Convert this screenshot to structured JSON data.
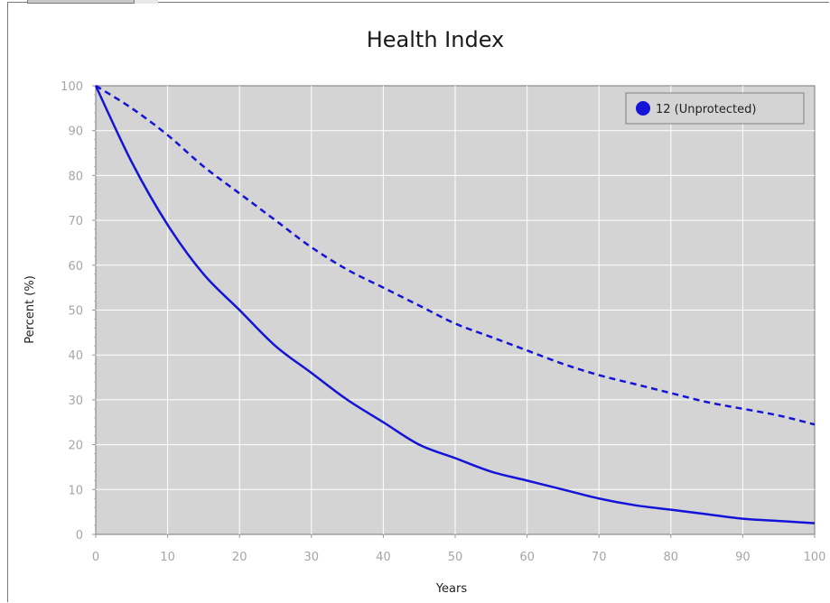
{
  "chart_data": {
    "type": "line",
    "title": "Health Index",
    "xlabel": "Years",
    "ylabel": "Percent (%)",
    "xlim": [
      0,
      100
    ],
    "ylim": [
      0,
      100
    ],
    "x_ticks": [
      "0",
      "10",
      "20",
      "30",
      "40",
      "50",
      "60",
      "70",
      "80",
      "90",
      "100"
    ],
    "y_ticks": [
      "0",
      "10",
      "20",
      "30",
      "40",
      "50",
      "60",
      "70",
      "80",
      "90",
      "100"
    ],
    "grid": true,
    "legend": {
      "placement": "top-right",
      "entries": [
        "12 (Unprotected)"
      ]
    },
    "x": [
      0,
      5,
      10,
      15,
      20,
      25,
      30,
      35,
      40,
      45,
      50,
      55,
      60,
      65,
      70,
      75,
      80,
      85,
      90,
      95,
      100
    ],
    "series": [
      {
        "name": "12 (Unprotected)",
        "style": "solid",
        "color": "#1414d9",
        "values": [
          100,
          83,
          69,
          58,
          50,
          42,
          36,
          30,
          25,
          20,
          17,
          14,
          12,
          10,
          8,
          6.5,
          5.5,
          4.5,
          3.5,
          3,
          2.5
        ]
      },
      {
        "style": "dashed",
        "color": "#1414d9",
        "values": [
          100,
          95,
          89,
          82,
          76,
          70,
          64,
          59,
          55,
          51,
          47,
          44,
          41,
          38,
          35.5,
          33.5,
          31.5,
          29.5,
          28,
          26.5,
          24.5
        ]
      }
    ]
  },
  "colors": {
    "plot_background": "#d4d4d4",
    "grid": "#ffffff",
    "line": "#1414d9"
  }
}
